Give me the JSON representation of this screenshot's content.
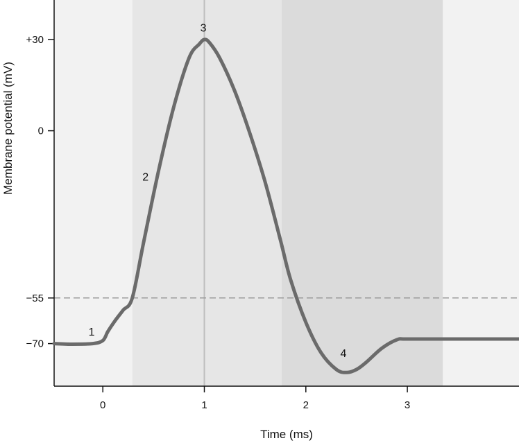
{
  "chart_data": {
    "type": "line",
    "title": "",
    "xlabel": "Time (ms)",
    "ylabel": "Membrane potential (mV)",
    "xlim": [
      -0.48,
      4.1
    ],
    "ylim": [
      -84,
      43
    ],
    "x_ticks": [
      0,
      1,
      2,
      3
    ],
    "x_tick_labels": [
      "0",
      "1",
      "2",
      "3"
    ],
    "y_ticks": [
      30,
      0,
      -55,
      -70
    ],
    "y_tick_labels": [
      "+30",
      "0",
      "−55",
      "−70"
    ],
    "threshold": -55,
    "peak_marker_x": 1,
    "phase_regions": [
      {
        "x_start": -0.48,
        "x_end": 0.29,
        "color": "#f2f2f2"
      },
      {
        "x_start": 0.29,
        "x_end": 1.76,
        "color": "#e6e6e6"
      },
      {
        "x_start": 1.76,
        "x_end": 3.35,
        "color": "#dbdbdb"
      },
      {
        "x_start": 3.35,
        "x_end": 4.1,
        "color": "#f2f2f2"
      }
    ],
    "series": [
      {
        "color": "#6b6b6b",
        "x": [
          -0.48,
          -0.3,
          -0.1,
          0.0,
          0.05,
          0.12,
          0.2,
          0.29,
          0.4,
          0.55,
          0.7,
          0.85,
          0.95,
          1.0,
          1.05,
          1.15,
          1.3,
          1.45,
          1.6,
          1.75,
          1.85,
          2.0,
          2.15,
          2.3,
          2.4,
          2.5,
          2.6,
          2.75,
          2.9,
          3.0,
          3.5,
          4.1
        ],
        "values": [
          -70,
          -70.2,
          -70,
          -69,
          -66,
          -62.5,
          -59,
          -55,
          -37,
          -13,
          8,
          24,
          28.5,
          30,
          29,
          24,
          13,
          -1,
          -17,
          -36,
          -49,
          -63,
          -73,
          -78.5,
          -79.5,
          -78.5,
          -76,
          -71.5,
          -68.7,
          -68.5,
          -68.5,
          -68.5
        ]
      }
    ],
    "annotations": [
      {
        "text": "1",
        "x": -0.11,
        "y": -66
      },
      {
        "text": "2",
        "x": 0.42,
        "y": -15
      },
      {
        "text": "3",
        "x": 0.99,
        "y": 34
      },
      {
        "text": "4",
        "x": 2.37,
        "y": -73
      }
    ]
  }
}
